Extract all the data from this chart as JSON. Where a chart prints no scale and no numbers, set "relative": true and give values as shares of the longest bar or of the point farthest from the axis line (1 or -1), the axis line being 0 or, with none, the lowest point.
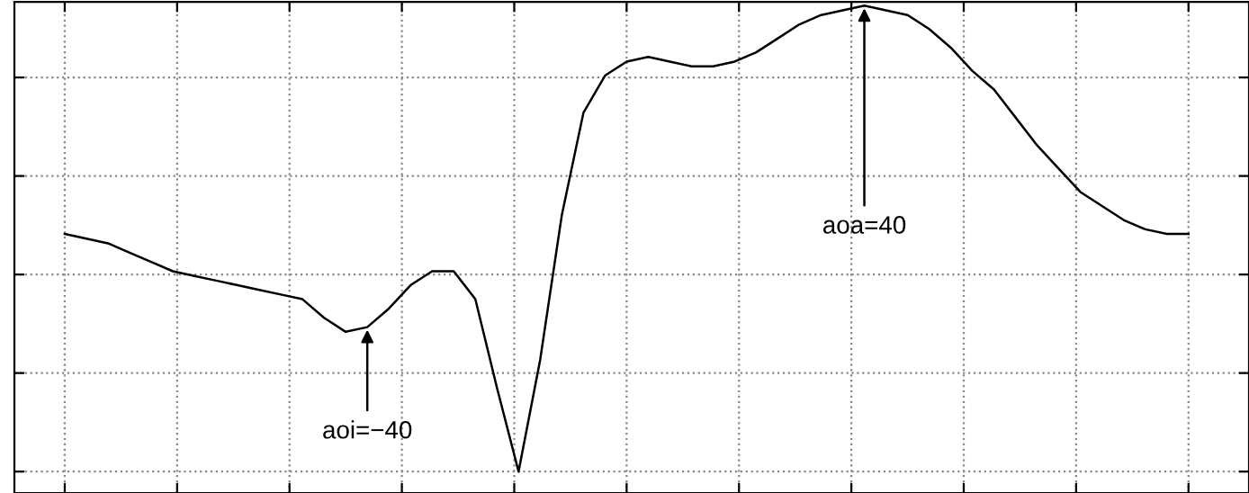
{
  "chart_data": {
    "type": "line",
    "relative": true,
    "color": "#000000",
    "grid": true,
    "line_style": "solid",
    "marker": "none",
    "tick_labels": false,
    "categories": [
      null,
      null,
      null,
      null,
      null,
      null,
      null,
      null,
      null,
      null,
      null,
      null,
      null,
      null,
      null,
      null,
      null,
      null,
      null,
      null,
      null,
      null,
      null,
      null,
      null,
      null,
      null,
      null,
      null,
      null,
      null,
      null,
      null,
      null,
      null,
      null,
      null,
      null,
      null,
      null,
      null,
      null,
      null,
      null,
      null,
      null,
      null,
      null,
      null,
      null,
      null,
      null,
      null
    ],
    "values": [
      0.51,
      0.5,
      0.49,
      0.47,
      0.45,
      0.43,
      0.42,
      0.41,
      0.4,
      0.39,
      0.38,
      0.37,
      0.33,
      0.3,
      0.31,
      0.35,
      0.4,
      0.43,
      0.43,
      0.37,
      0.18,
      0,
      0.24,
      0.55,
      0.77,
      0.85,
      0.88,
      0.89,
      0.88,
      0.87,
      0.87,
      0.88,
      0.9,
      0.93,
      0.96,
      0.98,
      0.99,
      1,
      0.99,
      0.98,
      0.95,
      0.91,
      0.86,
      0.82,
      0.76,
      0.7,
      0.65,
      0.6,
      0.57,
      0.54,
      0.52,
      0.51,
      0.51
    ],
    "annotations": [
      {
        "text": "aoi=−40",
        "y": 0.31
      },
      {
        "text": "aoa=40",
        "y": 1
      }
    ]
  }
}
